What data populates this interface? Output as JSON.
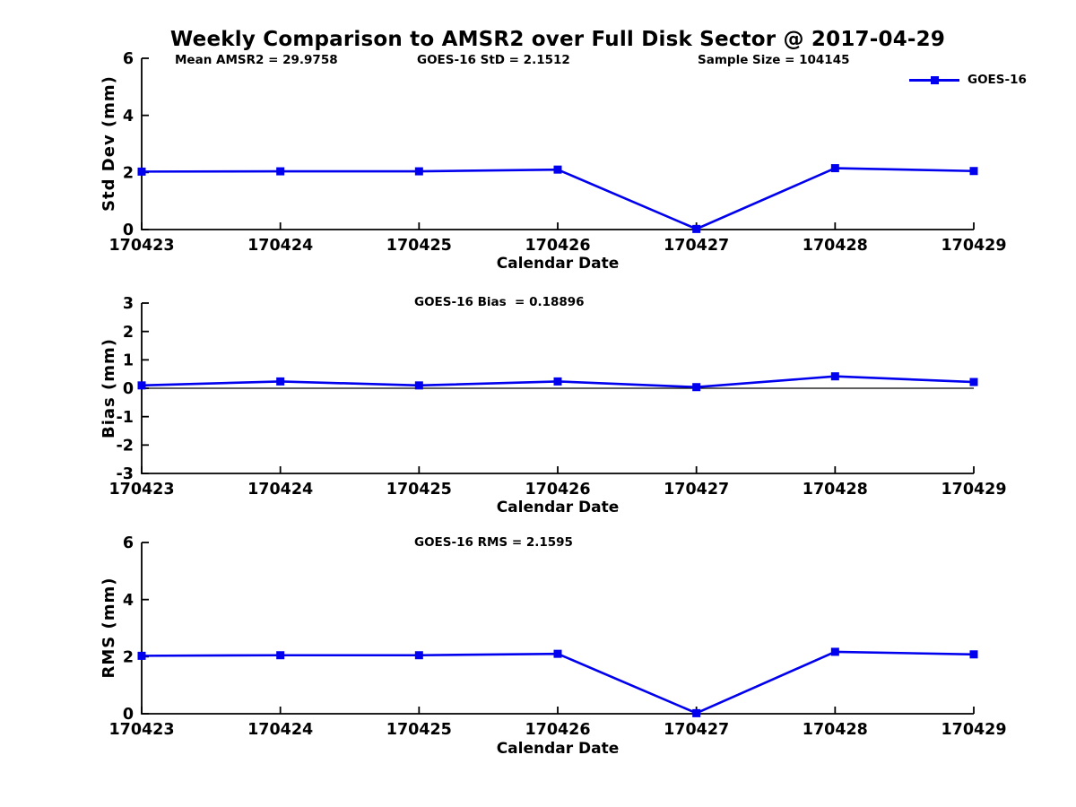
{
  "figure": {
    "title": "Weekly Comparison to AMSR2 over Full Disk Sector @ 2017-04-29",
    "series_color": "#0000EE",
    "axis_color": "#000000",
    "legend": {
      "label": "GOES-16"
    }
  },
  "chart_data": [
    {
      "type": "line",
      "id": "std-dev",
      "ylabel": "Std Dev (mm)",
      "xlabel": "Calendar Date",
      "annotations": [
        "Mean AMSR2 = 29.9758",
        "GOES-16 StD = 2.1512",
        "Sample Size = 104145"
      ],
      "categories": [
        "170423",
        "170424",
        "170425",
        "170426",
        "170427",
        "170428",
        "170429"
      ],
      "series": [
        {
          "name": "GOES-16",
          "values": [
            2.03,
            2.04,
            2.04,
            2.1,
            0.02,
            2.15,
            2.05
          ]
        }
      ],
      "ylim": [
        0,
        6
      ],
      "yticks": [
        0,
        2,
        4,
        6
      ],
      "zero_line": false,
      "grid": false,
      "legend_position": "top-right"
    },
    {
      "type": "line",
      "id": "bias",
      "ylabel": "Bias (mm)",
      "xlabel": "Calendar Date",
      "annotations": [
        "GOES-16 Bias  = 0.18896"
      ],
      "categories": [
        "170423",
        "170424",
        "170425",
        "170426",
        "170427",
        "170428",
        "170429"
      ],
      "series": [
        {
          "name": "GOES-16",
          "values": [
            0.1,
            0.24,
            0.1,
            0.24,
            0.04,
            0.42,
            0.22
          ]
        }
      ],
      "ylim": [
        -3,
        3
      ],
      "yticks": [
        -3,
        -2,
        -1,
        0,
        1,
        2,
        3
      ],
      "zero_line": true,
      "grid": false
    },
    {
      "type": "line",
      "id": "rms",
      "ylabel": "RMS (mm)",
      "xlabel": "Calendar Date",
      "annotations": [
        "GOES-16 RMS = 2.1595"
      ],
      "categories": [
        "170423",
        "170424",
        "170425",
        "170426",
        "170427",
        "170428",
        "170429"
      ],
      "series": [
        {
          "name": "GOES-16",
          "values": [
            2.03,
            2.05,
            2.05,
            2.1,
            0.02,
            2.17,
            2.08
          ]
        }
      ],
      "ylim": [
        0,
        6
      ],
      "yticks": [
        0,
        2,
        4,
        6
      ],
      "zero_line": false,
      "grid": false
    }
  ]
}
